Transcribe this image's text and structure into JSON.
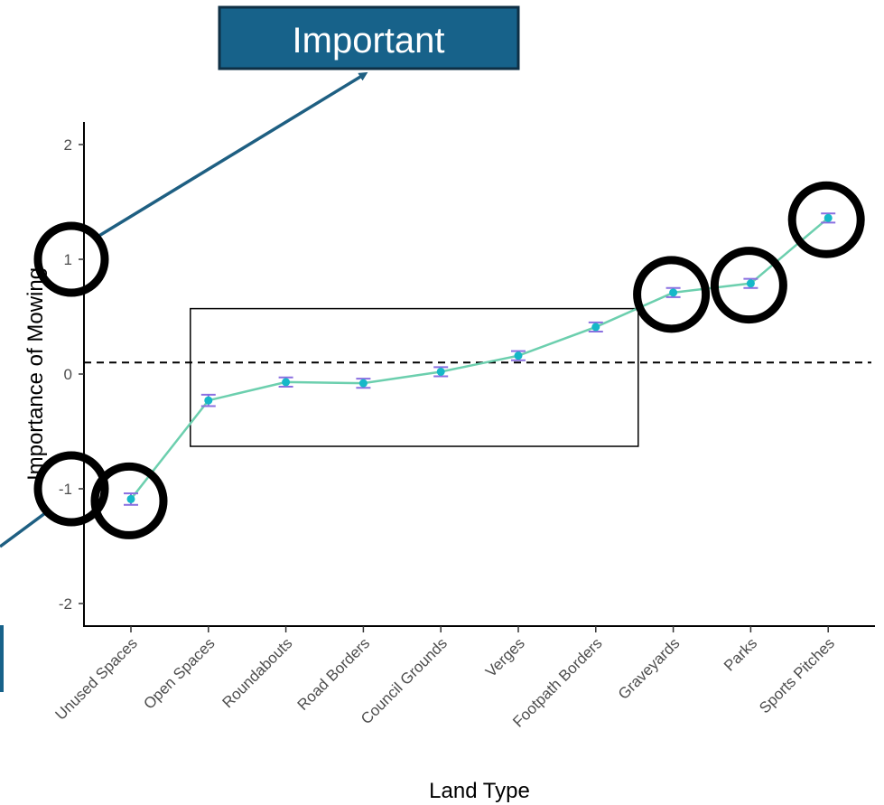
{
  "chart_data": {
    "type": "line",
    "categories": [
      "Unused Spaces",
      "Open Spaces",
      "Roundabouts",
      "Road Borders",
      "Council Grounds",
      "Verges",
      "Footpath Borders",
      "Graveyards",
      "Parks",
      "Sports Pitches"
    ],
    "values": [
      -1.09,
      -0.23,
      -0.07,
      -0.08,
      0.02,
      0.16,
      0.41,
      0.71,
      0.79,
      1.36
    ],
    "error_low": [
      -1.14,
      -0.28,
      -0.11,
      -0.12,
      -0.02,
      0.12,
      0.37,
      0.67,
      0.75,
      1.32
    ],
    "error_high": [
      -1.04,
      -0.18,
      -0.03,
      -0.04,
      0.06,
      0.2,
      0.45,
      0.75,
      0.83,
      1.4
    ],
    "xlabel": "Land Type",
    "ylabel": "Importance of Mowing",
    "ylim": [
      -2.1,
      2.1
    ],
    "yticks": [
      -2,
      -1,
      0,
      1,
      2
    ],
    "reference_line_y": 0.1,
    "grid": false,
    "highlight_box_categories": [
      "Open Spaces",
      "Footpath Borders"
    ],
    "highlight_box_yrange": [
      -0.63,
      0.57
    ],
    "circled_ytick_values": [
      1,
      -1
    ],
    "circled_categories": [
      "Unused Spaces",
      "Graveyards",
      "Parks",
      "Sports Pitches"
    ],
    "annotation": "Important",
    "colors": {
      "line": "#6ccfae",
      "point": "#15b8c8",
      "errorbar": "#8a6fe0",
      "callout_fill": "#17628a",
      "arrow": "#1e5f82"
    }
  }
}
